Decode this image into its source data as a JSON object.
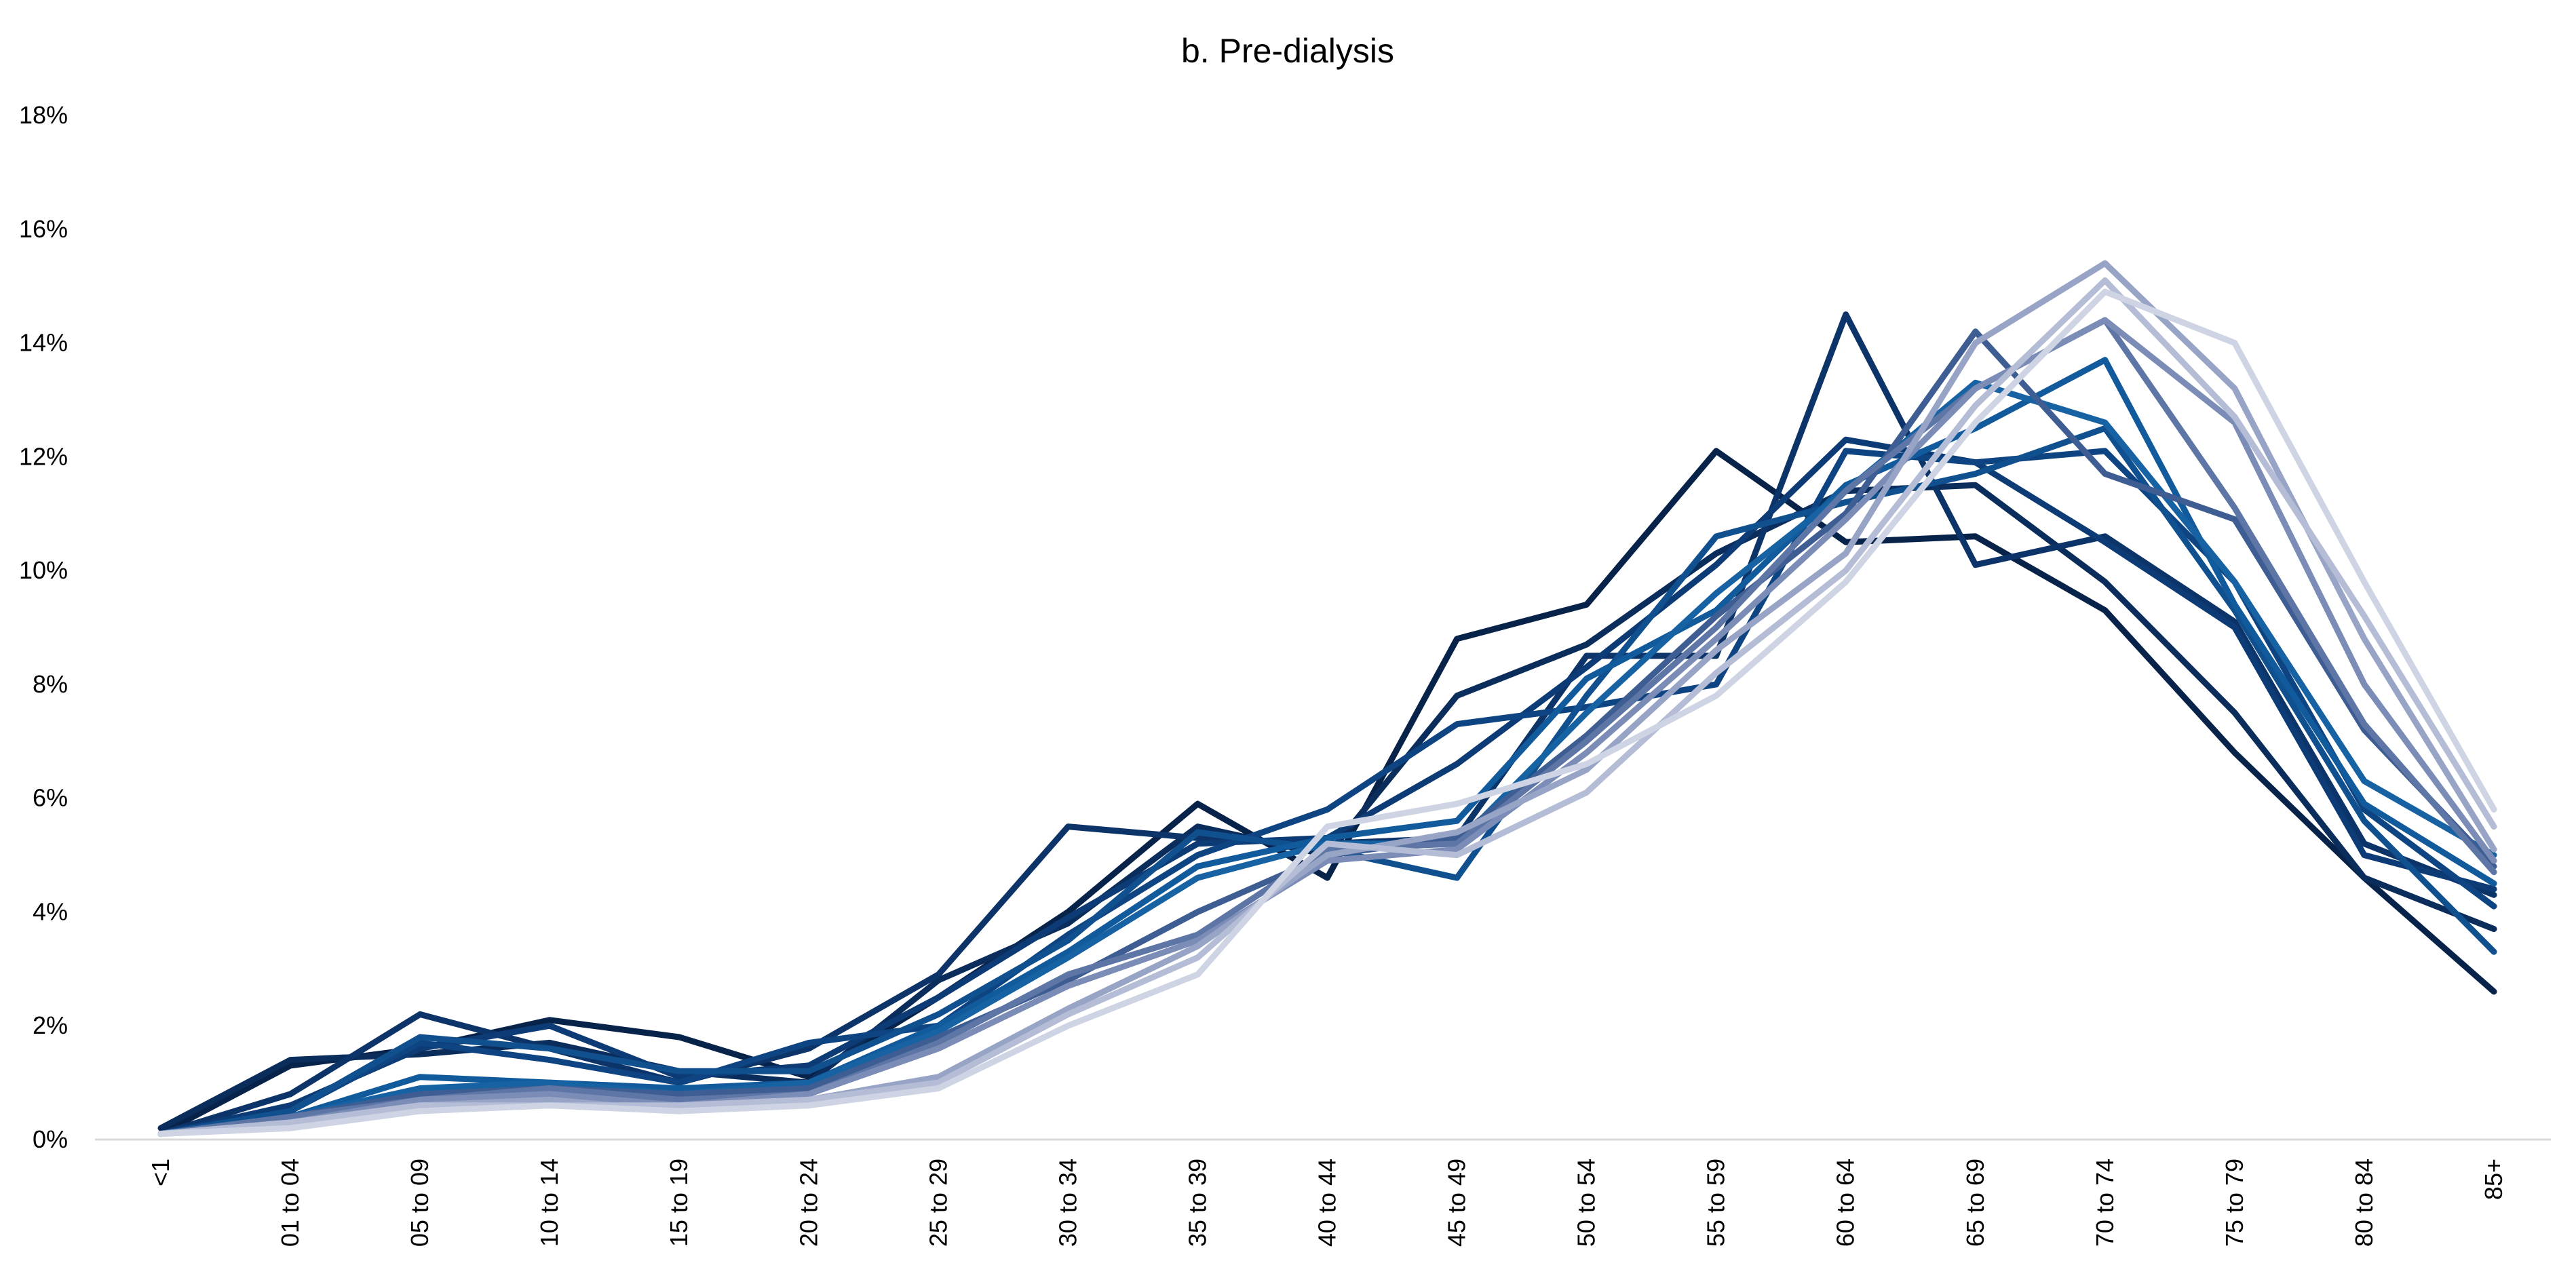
{
  "chart_data": {
    "type": "line",
    "title": "b. Pre-dialysis",
    "xlabel": "",
    "ylabel": "",
    "ylim": [
      0,
      18
    ],
    "y_ticks": [
      "0%",
      "2%",
      "4%",
      "6%",
      "8%",
      "10%",
      "12%",
      "14%",
      "16%",
      "18%"
    ],
    "y_tick_values": [
      0,
      2,
      4,
      6,
      8,
      10,
      12,
      14,
      16,
      18
    ],
    "grid": false,
    "legend": "none",
    "categories": [
      "<1",
      "01 to 04",
      "05 to 09",
      "10 to 14",
      "15 to 19",
      "20 to 24",
      "25 to 29",
      "30 to 34",
      "35 to 39",
      "40 to 44",
      "45 to 49",
      "50 to 54",
      "55 to 59",
      "60 to 64",
      "65 to 69",
      "70 to 74",
      "75 to 79",
      "80 to 84",
      "85+"
    ],
    "series": [
      {
        "color": "#08234a",
        "values": [
          0.1,
          1.3,
          1.6,
          2.1,
          1.8,
          1.1,
          2.5,
          4.0,
          5.9,
          4.6,
          8.8,
          9.4,
          12.1,
          10.5,
          10.6,
          9.3,
          6.8,
          4.6,
          2.6
        ]
      },
      {
        "color": "#0a2d5c",
        "values": [
          0.2,
          1.4,
          1.5,
          1.7,
          1.2,
          1.0,
          2.8,
          3.8,
          5.5,
          5.0,
          7.8,
          8.7,
          10.3,
          11.4,
          11.5,
          9.8,
          7.5,
          4.6,
          3.7
        ]
      },
      {
        "color": "#0c3469",
        "values": [
          0.1,
          0.8,
          2.2,
          1.6,
          1.0,
          1.6,
          2.9,
          5.5,
          5.3,
          5.2,
          5.3,
          8.5,
          8.5,
          14.5,
          10.1,
          10.6,
          9.1,
          5.2,
          4.3
        ]
      },
      {
        "color": "#0d3b75",
        "values": [
          0.1,
          0.6,
          1.6,
          2.0,
          1.1,
          1.3,
          2.5,
          3.9,
          5.2,
          5.3,
          6.6,
          8.3,
          10.1,
          12.3,
          11.9,
          10.5,
          9.0,
          5.0,
          4.4
        ]
      },
      {
        "color": "#0e4482",
        "values": [
          0.1,
          0.5,
          1.7,
          1.4,
          1.0,
          1.7,
          2.0,
          3.6,
          5.0,
          5.8,
          7.3,
          7.6,
          8.0,
          12.1,
          11.9,
          12.1,
          9.8,
          5.8,
          4.1
        ]
      },
      {
        "color": "#10508f",
        "values": [
          0.1,
          0.5,
          1.8,
          1.6,
          1.2,
          1.2,
          2.2,
          3.5,
          5.4,
          5.1,
          4.6,
          7.8,
          10.6,
          11.2,
          11.7,
          12.5,
          9.3,
          5.6,
          3.3
        ]
      },
      {
        "color": "#115a9c",
        "values": [
          0.1,
          0.4,
          1.1,
          1.0,
          0.9,
          1.0,
          2.0,
          3.3,
          4.8,
          5.3,
          5.6,
          8.1,
          9.3,
          11.5,
          12.5,
          13.7,
          9.4,
          5.9,
          4.5
        ]
      },
      {
        "color": "#1762a3",
        "values": [
          0.1,
          0.4,
          0.9,
          1.0,
          0.8,
          1.0,
          1.9,
          3.2,
          4.6,
          5.2,
          5.2,
          7.5,
          9.6,
          11.4,
          13.3,
          12.6,
          9.8,
          6.3,
          5.0
        ]
      },
      {
        "color": "#3e5d93",
        "values": [
          0.1,
          0.4,
          0.8,
          0.9,
          0.8,
          0.9,
          1.8,
          2.8,
          4.0,
          5.0,
          5.3,
          7.1,
          9.2,
          11.0,
          14.2,
          11.7,
          10.9,
          7.2,
          4.8
        ]
      },
      {
        "color": "#5e76a6",
        "values": [
          0.1,
          0.4,
          0.7,
          0.9,
          0.7,
          0.8,
          1.7,
          2.9,
          3.6,
          5.1,
          5.2,
          7.0,
          9.0,
          11.4,
          13.2,
          14.4,
          11.1,
          7.3,
          4.7
        ]
      },
      {
        "color": "#7b8cb7",
        "values": [
          0.1,
          0.3,
          0.7,
          0.8,
          0.6,
          0.8,
          1.6,
          2.7,
          3.5,
          4.9,
          5.1,
          6.8,
          8.8,
          10.9,
          13.2,
          14.4,
          12.6,
          8.0,
          4.9
        ]
      },
      {
        "color": "#98a4c6",
        "values": [
          0.1,
          0.3,
          0.6,
          0.7,
          0.5,
          0.7,
          1.1,
          2.3,
          3.4,
          5.0,
          5.4,
          6.5,
          8.6,
          10.3,
          14.0,
          15.4,
          13.2,
          8.8,
          5.1
        ]
      },
      {
        "color": "#b4bdd5",
        "values": [
          0.1,
          0.3,
          0.6,
          0.6,
          0.6,
          0.7,
          1.0,
          2.2,
          3.2,
          5.2,
          5.0,
          6.1,
          8.2,
          10.0,
          12.9,
          15.1,
          12.7,
          9.2,
          5.5
        ]
      },
      {
        "color": "#ced4e3",
        "values": [
          0.1,
          0.2,
          0.5,
          0.6,
          0.5,
          0.6,
          0.9,
          2.0,
          2.9,
          5.5,
          5.9,
          6.6,
          7.8,
          9.8,
          12.6,
          14.9,
          14.0,
          9.8,
          5.8
        ]
      }
    ]
  }
}
